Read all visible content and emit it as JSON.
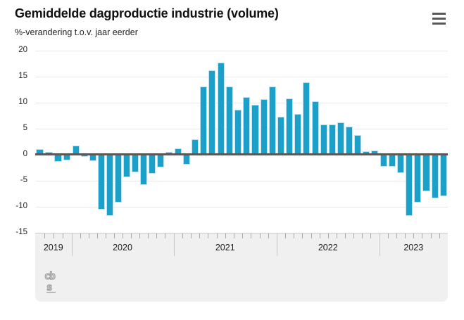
{
  "header": {
    "title": "Gemiddelde dagproductie industrie (volume)",
    "subtitle": "%-verandering t.o.v. jaar eerder",
    "menu_icon": "hamburger-menu-icon"
  },
  "footer": {
    "logo_icon": "cbs-logo",
    "logo_text_row1": "cb",
    "logo_text_row2": "s"
  },
  "colors": {
    "bar_fill": "#1ba1c9",
    "bar_stroke": "#bde3f1",
    "zero_line": "#58585a",
    "grid_line": "#e7e7e7",
    "band_bg": "#f0f0f0",
    "band_border": "#cdcdcd",
    "tick": "#ababab",
    "divider": "#c6c6c6",
    "axis_text": "#222222",
    "menu_icon": "#58585a",
    "logo_gray": "#9d9d9d"
  },
  "chart_data": {
    "type": "bar",
    "title": "Gemiddelde dagproductie industrie (volume)",
    "ylabel": "%-verandering t.o.v. jaar eerder",
    "ylim": [
      -15,
      20
    ],
    "y_ticks": [
      20,
      15,
      10,
      5,
      0,
      -5,
      -10,
      -15
    ],
    "grid": true,
    "legend": false,
    "x_axis_year_sections": [
      {
        "label": "2019",
        "values": [
          1.0,
          0.5,
          -1.4,
          -1.1
        ]
      },
      {
        "label": "2020",
        "values": [
          1.7,
          -0.5,
          -1.3,
          -10.6,
          -11.8,
          -9.2,
          -4.4,
          -3.4,
          -5.9,
          -3.7,
          -2.5,
          0.5
        ]
      },
      {
        "label": "2021",
        "values": [
          1.1,
          -1.9,
          2.9,
          13.0,
          16.1,
          17.6,
          13.1,
          8.6,
          11.0,
          9.6,
          10.6,
          13.0
        ]
      },
      {
        "label": "2022",
        "values": [
          7.3,
          10.7,
          7.8,
          13.8,
          10.2,
          5.7,
          5.7,
          6.1,
          5.4,
          3.7,
          0.6,
          0.7
        ]
      },
      {
        "label": "2023",
        "values": [
          -2.4,
          -2.3,
          -3.6,
          -11.8,
          -9.2,
          -7.1,
          -8.4,
          -8.0
        ]
      }
    ]
  }
}
